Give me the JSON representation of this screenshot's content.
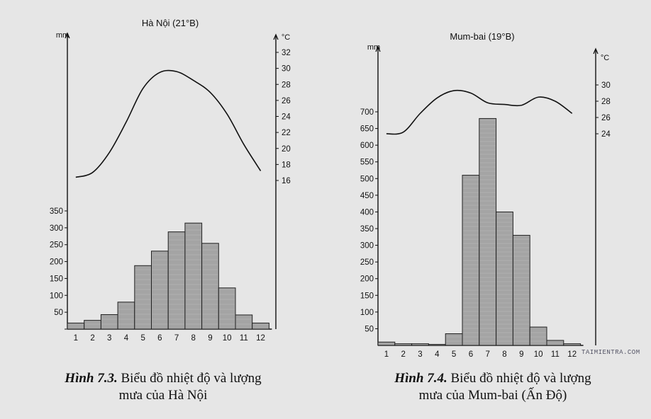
{
  "chart_data": [
    {
      "type": "bar",
      "title": "Hà Nội (21°B)",
      "categories": [
        "1",
        "2",
        "3",
        "4",
        "5",
        "6",
        "7",
        "8",
        "9",
        "10",
        "11",
        "12"
      ],
      "series": [
        {
          "values": [
            18,
            26,
            43,
            80,
            188,
            231,
            288,
            314,
            254,
            122,
            42,
            18
          ]
        },
        {
          "values": [
            16.4,
            17.0,
            19.5,
            23.3,
            27.5,
            29.5,
            29.6,
            28.5,
            27.0,
            24.3,
            20.5,
            17.2
          ]
        }
      ],
      "precip_unit": "mm",
      "temp_unit": "°C",
      "precip_ticks": [
        0,
        50,
        100,
        150,
        200,
        250,
        300,
        350
      ],
      "temp_ticks": [
        16,
        18,
        20,
        22,
        24,
        26,
        28,
        30,
        32
      ],
      "precip_ylim": [
        0,
        350
      ],
      "temp_ylim": [
        16,
        32
      ]
    },
    {
      "type": "bar",
      "title": "Mum-bai (19°B)",
      "categories": [
        "1",
        "2",
        "3",
        "4",
        "5",
        "6",
        "7",
        "8",
        "9",
        "10",
        "11",
        "12"
      ],
      "series": [
        {
          "values": [
            10,
            5,
            5,
            3,
            35,
            510,
            680,
            400,
            330,
            55,
            15,
            5
          ]
        },
        {
          "values": [
            24,
            24.2,
            26.5,
            28.4,
            29.3,
            29,
            27.8,
            27.6,
            27.5,
            28.5,
            28,
            26.5
          ]
        }
      ],
      "precip_unit": "mm",
      "temp_unit": "°C",
      "precip_ticks": [
        50,
        100,
        150,
        200,
        250,
        300,
        350,
        400,
        450,
        500,
        550,
        600,
        650,
        700
      ],
      "temp_ticks": [
        24,
        26,
        28,
        30
      ],
      "precip_ylim": [
        0,
        700
      ],
      "temp_ylim": [
        24,
        30
      ]
    }
  ],
  "captions": [
    {
      "lead": "Hình 7.3.",
      "rest": " Biểu đồ nhiệt độ và lượng",
      "line2": "mưa của Hà Nội"
    },
    {
      "lead": "Hình 7.4.",
      "rest": " Biểu đồ nhiệt độ và lượng",
      "line2": "mưa của Mum-bai (Ấn Độ)"
    }
  ],
  "watermark": "TAIMIENTRA.COM",
  "colors": {
    "bar": "#a4a4a4",
    "line": "#111111",
    "background": "#e6e6e6"
  }
}
